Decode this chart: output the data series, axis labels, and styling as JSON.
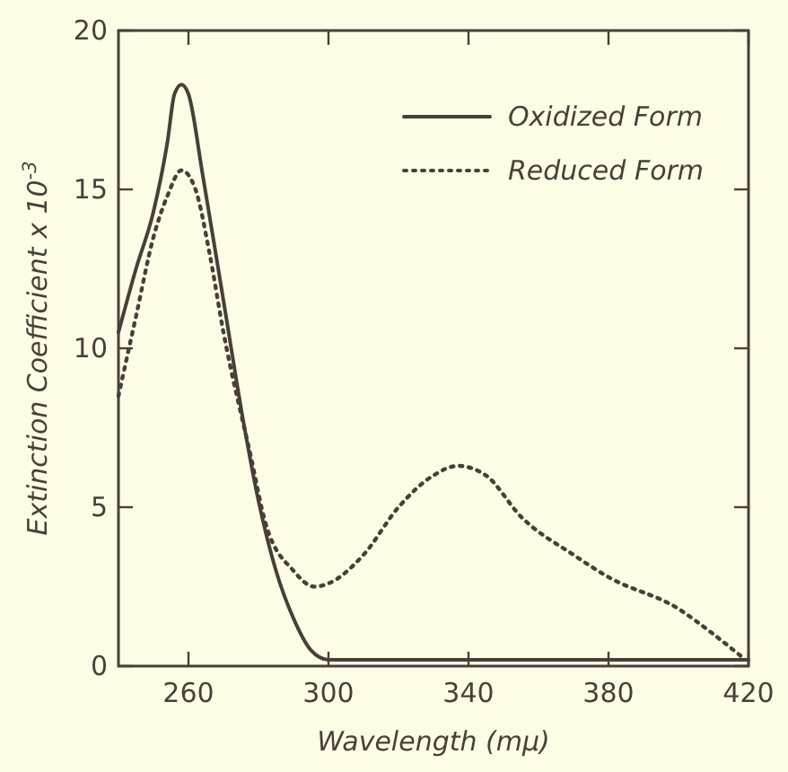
{
  "chart_data": {
    "type": "line",
    "xlabel": "Wavelength (mμ)",
    "ylabel": "Extinction Coefficient x 10$^{-3}$",
    "xlim": [
      240,
      420
    ],
    "ylim": [
      0,
      20
    ],
    "xticks": [
      260,
      300,
      340,
      380,
      420
    ],
    "yticks": [
      0,
      5,
      10,
      15,
      20
    ],
    "grid": false,
    "legend": "top right",
    "marker": "none",
    "series": [
      {
        "name": "Oxidized Form",
        "color": "#4a3f38",
        "line_style": "solid",
        "x": [
          240,
          245,
          250,
          254,
          256,
          258,
          260,
          264,
          270,
          276,
          280,
          285,
          290,
          295,
          300,
          340,
          380,
          420
        ],
        "values": [
          10.5,
          12.5,
          14.3,
          16.5,
          18,
          18.3,
          18,
          15.5,
          11.5,
          7.5,
          5.2,
          3,
          1.5,
          0.5,
          0.2,
          0.2,
          0.2,
          0.2
        ]
      },
      {
        "name": "Reduced Form",
        "color": "#4a3f38",
        "line_style": "dotted",
        "x": [
          240,
          245,
          250,
          254,
          258,
          262,
          266,
          270,
          278,
          282,
          290,
          296,
          300,
          310,
          320,
          330,
          337,
          345,
          355,
          370,
          380,
          400,
          410,
          418
        ],
        "values": [
          8.5,
          11,
          13.5,
          14.8,
          15.6,
          15,
          13,
          10.5,
          6.5,
          4.5,
          3,
          2.5,
          2.6,
          3.5,
          5,
          6,
          6.3,
          6,
          4.7,
          3.5,
          2.8,
          1.8,
          1,
          0.3
        ]
      }
    ]
  }
}
